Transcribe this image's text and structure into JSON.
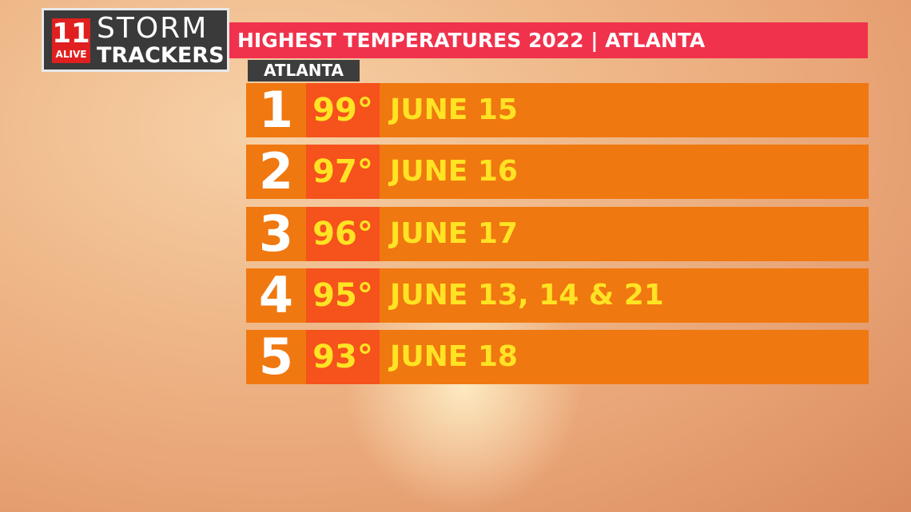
{
  "logo": {
    "number": "11",
    "tag": "ALIVE",
    "line1": "STORM",
    "line2": "TRACKERS"
  },
  "header": {
    "title": "HIGHEST TEMPERATURES 2022 | ATLANTA",
    "location": "ATLANTA"
  },
  "table": {
    "rows": [
      [
        "1",
        "99°",
        "JUNE 15"
      ],
      [
        "2",
        "97°",
        "JUNE 16"
      ],
      [
        "3",
        "96°",
        "JUNE 17"
      ],
      [
        "4",
        "95°",
        "JUNE 13, 14 & 21"
      ],
      [
        "5",
        "93°",
        "JUNE 18"
      ]
    ]
  }
}
